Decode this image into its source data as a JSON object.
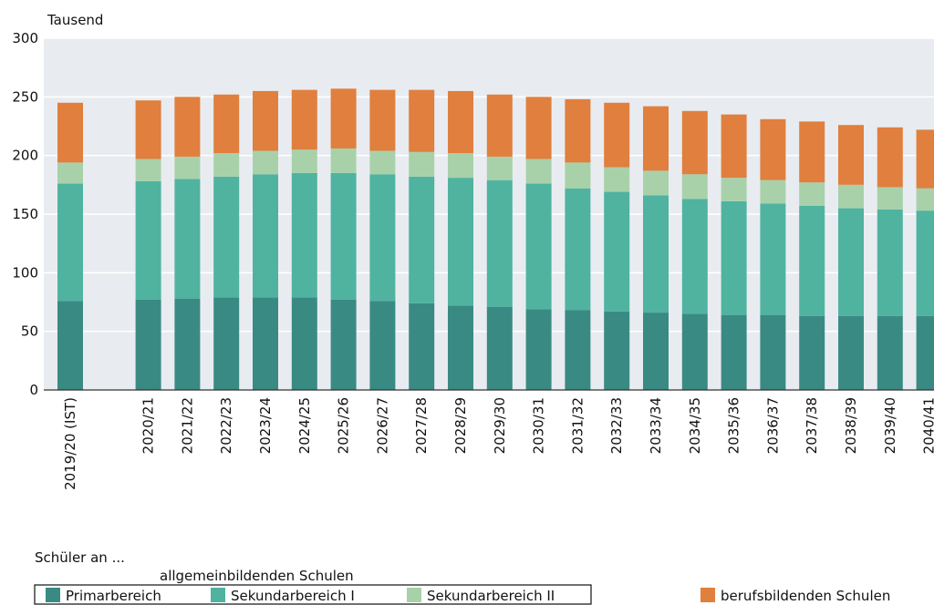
{
  "chart_data": {
    "type": "stacked_bar",
    "y_axis_label": "Tausend",
    "legend_title": "Schüler an ...",
    "legend_group": "allgemeinbildenden Schulen",
    "categories": [
      "2019/20 (IST)",
      null,
      "2020/21",
      "2021/22",
      "2022/23",
      "2023/24",
      "2024/25",
      "2025/26",
      "2026/27",
      "2027/28",
      "2028/29",
      "2029/30",
      "2030/31",
      "2031/32",
      "2032/33",
      "2033/34",
      "2034/35",
      "2035/36",
      "2036/37",
      "2037/38",
      "2038/39",
      "2039/40",
      "2040/41"
    ],
    "series": [
      {
        "name": "Primarbereich",
        "color": "#3a8a84",
        "values": [
          76,
          null,
          77,
          78,
          79,
          79,
          79,
          77,
          76,
          74,
          72,
          71,
          69,
          68,
          67,
          66,
          65,
          64,
          64,
          63,
          63,
          63,
          63
        ]
      },
      {
        "name": "Sekundarbereich I",
        "color": "#4fb3a0",
        "values": [
          100,
          null,
          101,
          102,
          103,
          105,
          106,
          108,
          108,
          108,
          109,
          108,
          107,
          104,
          102,
          100,
          98,
          97,
          95,
          94,
          92,
          91,
          90
        ]
      },
      {
        "name": "Sekundarbereich II",
        "color": "#a8d1aa",
        "values": [
          18,
          null,
          19,
          19,
          20,
          20,
          20,
          21,
          20,
          21,
          21,
          20,
          21,
          22,
          21,
          21,
          21,
          20,
          20,
          20,
          20,
          19,
          19
        ]
      },
      {
        "name": "berufsbildenden Schulen",
        "color": "#e07f3e",
        "values": [
          51,
          null,
          50,
          51,
          50,
          51,
          51,
          51,
          52,
          53,
          53,
          53,
          53,
          54,
          55,
          55,
          54,
          54,
          52,
          52,
          51,
          51,
          50
        ]
      }
    ],
    "ylim": [
      0,
      300
    ],
    "yticks": [
      0,
      50,
      100,
      150,
      200,
      250,
      300
    ],
    "grid": true
  }
}
